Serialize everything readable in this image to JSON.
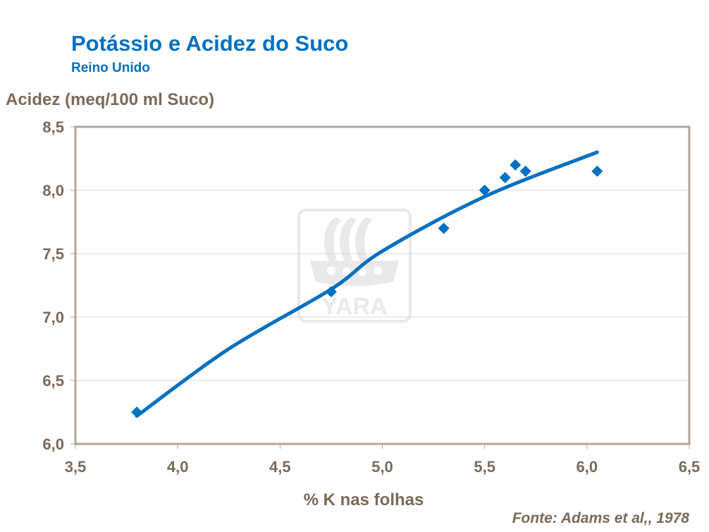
{
  "header": {
    "title": "Potássio e Acidez do Suco",
    "subtitle": "Reino Unido"
  },
  "source": "Fonte: Adams et al,, 1978",
  "watermark": "YARA",
  "colors": {
    "accent": "#0070C0",
    "axis_text": "#7A6A58",
    "axis_line": "#B0A698",
    "grid": "#D9D9D9"
  },
  "chart_data": {
    "type": "scatter",
    "title": "Potássio e Acidez do Suco",
    "subtitle": "Reino Unido",
    "xlabel": "% K nas folhas",
    "ylabel": "Acidez (meq/100 ml Suco)",
    "xlim": [
      3.5,
      6.5
    ],
    "ylim": [
      6.0,
      8.5
    ],
    "x_ticks": [
      "3,5",
      "4,0",
      "4,5",
      "5,0",
      "5,5",
      "6,0",
      "6,5"
    ],
    "y_ticks": [
      "8,5",
      "8,0",
      "7,5",
      "7,0",
      "6,5",
      "6,0"
    ],
    "grid": "horizontal",
    "legend": "none",
    "series": [
      {
        "name": "observed",
        "marker": "diamond",
        "points": [
          {
            "x": 3.8,
            "y": 6.25
          },
          {
            "x": 4.75,
            "y": 7.2
          },
          {
            "x": 5.3,
            "y": 7.7
          },
          {
            "x": 5.5,
            "y": 8.0
          },
          {
            "x": 5.6,
            "y": 8.1
          },
          {
            "x": 5.65,
            "y": 8.2
          },
          {
            "x": 5.7,
            "y": 8.15
          },
          {
            "x": 6.05,
            "y": 8.15
          }
        ]
      },
      {
        "name": "trendline (polynomial)",
        "type": "line",
        "points": [
          {
            "x": 3.8,
            "y": 6.22
          },
          {
            "x": 4.25,
            "y": 6.75
          },
          {
            "x": 4.75,
            "y": 7.22
          },
          {
            "x": 5.0,
            "y": 7.52
          },
          {
            "x": 5.5,
            "y": 7.95
          },
          {
            "x": 6.05,
            "y": 8.3
          }
        ]
      }
    ],
    "annotations": [
      "Fonte: Adams et al,, 1978"
    ]
  }
}
